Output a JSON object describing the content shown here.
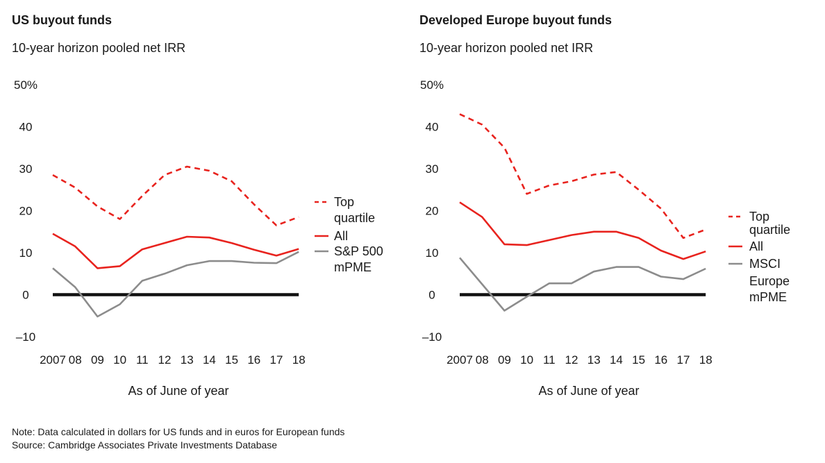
{
  "colors": {
    "top": "#e8231e",
    "all": "#e8231e",
    "pme": "#8c8c8c",
    "zero": "#111111"
  },
  "chart_data": [
    {
      "type": "line",
      "title": "US buyout funds",
      "subtitle": "10-year horizon pooled net IRR",
      "xlabel": "As of June of year",
      "ylim": [
        -10,
        50
      ],
      "y_ticks": [
        "50%",
        "40",
        "30",
        "20",
        "10",
        "0",
        "–10"
      ],
      "y_tick_values": [
        50,
        40,
        30,
        20,
        10,
        0,
        -10
      ],
      "categories": [
        "2007",
        "08",
        "09",
        "10",
        "11",
        "12",
        "13",
        "14",
        "15",
        "16",
        "17",
        "18"
      ],
      "series": [
        {
          "name": "Top quartile",
          "legend_lines": [
            "Top",
            "quartile"
          ],
          "style": "dashed",
          "color": "#e8231e",
          "values": [
            28.5,
            25.5,
            21,
            18,
            23.5,
            28.5,
            30.5,
            29.5,
            27,
            21.5,
            16.5,
            18.5
          ]
        },
        {
          "name": "All",
          "legend_lines": [
            "All"
          ],
          "style": "solid",
          "color": "#e8231e",
          "values": [
            14.5,
            11.5,
            6.3,
            6.8,
            10.8,
            12.3,
            13.8,
            13.6,
            12.3,
            10.7,
            9.3,
            10.9
          ]
        },
        {
          "name": "S&P 500 mPME",
          "legend_lines": [
            "S&P 500",
            "mPME"
          ],
          "style": "solid",
          "color": "#8c8c8c",
          "values": [
            6.3,
            1.8,
            -5.2,
            -2.3,
            3.3,
            5.0,
            7.0,
            8.0,
            8.0,
            7.6,
            7.5,
            10.2
          ]
        }
      ]
    },
    {
      "type": "line",
      "title": "Developed Europe buyout funds",
      "subtitle": "10-year horizon pooled net IRR",
      "xlabel": "As of June of year",
      "ylim": [
        -10,
        50
      ],
      "y_ticks": [
        "50%",
        "40",
        "30",
        "20",
        "10",
        "0",
        "–10"
      ],
      "y_tick_values": [
        50,
        40,
        30,
        20,
        10,
        0,
        -10
      ],
      "categories": [
        "2007",
        "08",
        "09",
        "10",
        "11",
        "12",
        "13",
        "14",
        "15",
        "16",
        "17",
        "18"
      ],
      "series": [
        {
          "name": "Top quartile",
          "legend_lines": [
            "Top",
            "quartile"
          ],
          "style": "dashed",
          "color": "#e8231e",
          "values": [
            43,
            40.5,
            35,
            24,
            26,
            27,
            28.6,
            29.2,
            25,
            20.5,
            13.5,
            15.5
          ]
        },
        {
          "name": "All",
          "legend_lines": [
            "All"
          ],
          "style": "solid",
          "color": "#e8231e",
          "values": [
            22,
            18.5,
            12,
            11.8,
            13,
            14.2,
            15,
            15,
            13.5,
            10.5,
            8.5,
            10.3
          ]
        },
        {
          "name": "MSCI Europe mPME",
          "legend_lines": [
            "MSCI",
            "Europe",
            "mPME"
          ],
          "style": "solid",
          "color": "#8c8c8c",
          "values": [
            8.8,
            2.5,
            -3.8,
            -0.5,
            2.7,
            2.7,
            5.5,
            6.6,
            6.6,
            4.3,
            3.7,
            6.2
          ]
        }
      ]
    }
  ],
  "footnote": {
    "note": "Note: Data calculated in dollars for US funds and in euros for European funds",
    "source": "Source: Cambridge Associates Private Investments Database"
  }
}
